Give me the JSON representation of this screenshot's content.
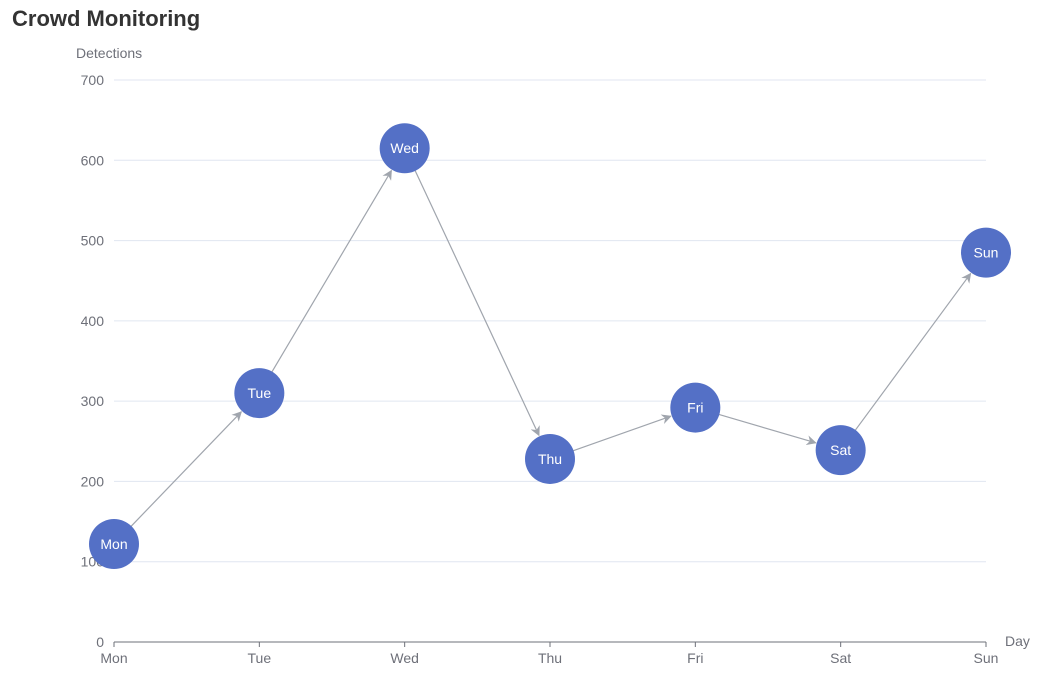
{
  "chart_data": {
    "type": "line",
    "title": "Crowd Monitoring",
    "xlabel": "Day",
    "ylabel": "Detections",
    "categories": [
      "Mon",
      "Tue",
      "Wed",
      "Thu",
      "Fri",
      "Sat",
      "Sun"
    ],
    "values": [
      122,
      310,
      615,
      228,
      292,
      239,
      485
    ],
    "ylim": [
      0,
      700
    ],
    "yticks": [
      0,
      100,
      200,
      300,
      400,
      500,
      600,
      700
    ],
    "grid": true,
    "legend": "none",
    "colors": {
      "node": "#5470c6",
      "edge": "#a0a5ad",
      "grid": "#e0e6f1",
      "axis": "#6e7079"
    }
  }
}
